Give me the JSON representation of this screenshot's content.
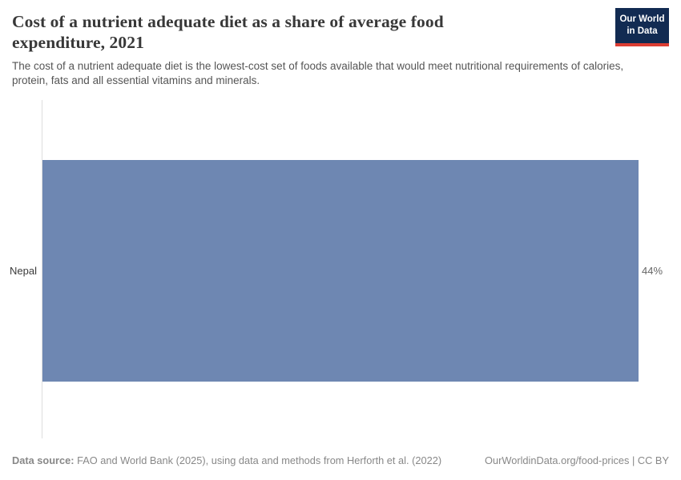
{
  "header": {
    "title": "Cost of a nutrient adequate diet as a share of average food expenditure, 2021",
    "subtitle": "The cost of a nutrient adequate diet is the lowest-cost set of foods available that would meet nutritional requirements of calories, protein, fats and all essential vitamins and minerals.",
    "logo": {
      "line1": "Our World",
      "line2": "in Data"
    }
  },
  "chart_data": {
    "type": "bar",
    "orientation": "horizontal",
    "title": "Cost of a nutrient adequate diet as a share of average food expenditure, 2021",
    "year": "2021",
    "categories": [
      "Nepal"
    ],
    "values": [
      44
    ],
    "value_labels": [
      "44%"
    ],
    "unit": "%",
    "bar_color": "#6e87b2",
    "axis": {
      "gridlines": false,
      "tick_labels_visible": false,
      "entity_axis_line_color": "#dedede"
    },
    "legend": "none"
  },
  "footer": {
    "source_label": "Data source:",
    "source_text": "FAO and World Bank (2025), using data and methods from Herforth et al. (2022)",
    "link_text": "OurWorldinData.org/food-prices | CC BY"
  },
  "colors": {
    "title_text": "#383838",
    "subtitle_text": "#555555",
    "bar": "#6e87b2",
    "logo_background": "#122b52",
    "logo_accent": "#dc3d33",
    "entity_label_text": "#3a3a3a",
    "value_label_text": "#666666",
    "footer_text": "#888888",
    "axis_line": "#dedede"
  }
}
